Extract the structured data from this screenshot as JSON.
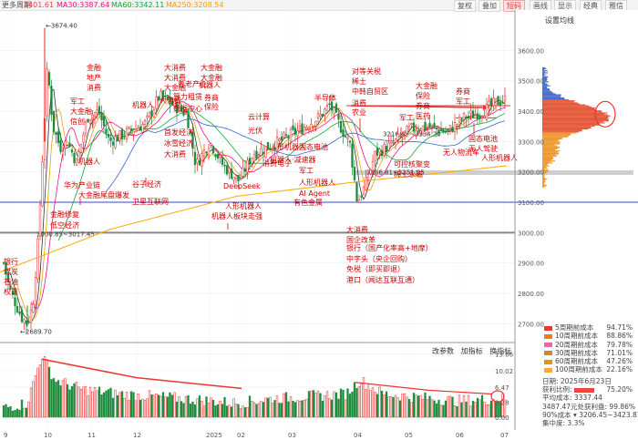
{
  "toolbar": {
    "period": "更多周期",
    "ma_prefix": "",
    "ma_first": "3401.61",
    "ma30": "MA30:3387.64",
    "ma60": "MA60:3342.11",
    "ma250": "MA250:3208.54",
    "buttons": [
      "复权",
      "叠加",
      "短码",
      "画线",
      "显示",
      "经典",
      "雅信"
    ],
    "active_button": "短码",
    "right_label": "设置均线"
  },
  "price_axis": [
    "3600.00",
    "3500.00",
    "3400.00",
    "3300.00",
    "3200.00",
    "3100.00",
    "3000.00",
    "2900.00",
    "2800.00",
    "2700.00"
  ],
  "volume_axis": [
    "13.66",
    "10.02",
    "6.47",
    "3.28",
    "0.00"
  ],
  "x_axis": [
    "9",
    "10",
    "11",
    "12",
    "2025",
    "02",
    "03",
    "04",
    "05",
    "06",
    "07"
  ],
  "price_labels": {
    "high": "3674.40",
    "low": "2689.70",
    "level1": "3000.85~3017.45",
    "level2": "3186.81~3251.95",
    "level3": "3216.45~3334.20"
  },
  "annotations": [
    "金融",
    "地产",
    "消费",
    "军工",
    "大金融",
    "信创",
    "机器人",
    "华为产业链",
    "大金融尾盘爆发",
    "大消费",
    "机器人",
    "大消费",
    "大金融",
    "大消费",
    "大金融",
    "养老产业",
    "算力租赁",
    "数据中心",
    "首发经济",
    "冰雪经济",
    "谷子经济",
    "卫星互联网",
    "大消费",
    "机器人",
    "大金融",
    "券商",
    "保险",
    "DeepSeek",
    "人形机器人",
    "机器人板块走强",
    "云计算",
    "光伏",
    "人形机器人",
    "机器人·减速器",
    "固态电池",
    "消费电子",
    "军工",
    "人形机器人",
    "AI Agent",
    "有色金属",
    "对等关税",
    "稀土",
    "中韩自贸区",
    "消费",
    "农业",
    "大消费",
    "国企改革",
    "银行（国产化率高+地摩）",
    "中字头（央企回购）",
    "免税（即买即退）",
    "港口（闻达互联互通）",
    "大金融",
    "保险",
    "券商",
    "军工",
    "医药",
    "稀土永磁",
    "可控核聚变",
    "券商",
    "军工",
    "固态电池",
    "无人驾驶",
    "人形机器人",
    "无人物流车",
    "半导体",
    "低空经济",
    "金融修复",
    "银行",
    "煤炭",
    "石油",
    "权重"
  ],
  "volume_header": {
    "items": [
      "改参数",
      "加指标",
      "换指标"
    ]
  },
  "cost_panel": {
    "rows": [
      {
        "label": "5周期前成本",
        "pct": "94.71%",
        "color": "#ee3333"
      },
      {
        "label": "10周期前成本",
        "pct": "88.86%",
        "color": "#ff7711"
      },
      {
        "label": "20周期前成本",
        "pct": "79.78%",
        "color": "#ee66aa"
      },
      {
        "label": "30周期前成本",
        "pct": "71.01%",
        "color": "#cc8833"
      },
      {
        "label": "60周期前成本",
        "pct": "47.26%",
        "color": "#dd9900"
      },
      {
        "label": "100周期前成本",
        "pct": "22.16%",
        "color": "#ffaa33"
      }
    ],
    "date": "日期: 2025年6月23日",
    "profit_label": "获利比例:",
    "profit_pct": "75.20%",
    "avg_cost": "平均成本: 3337.44",
    "profit_zero": "3487.47元处获利盘: 99.86%",
    "cost90": "90%成本 ▾  3206.45~3423.81",
    "concentration": "集中度: 3.3%"
  }
}
